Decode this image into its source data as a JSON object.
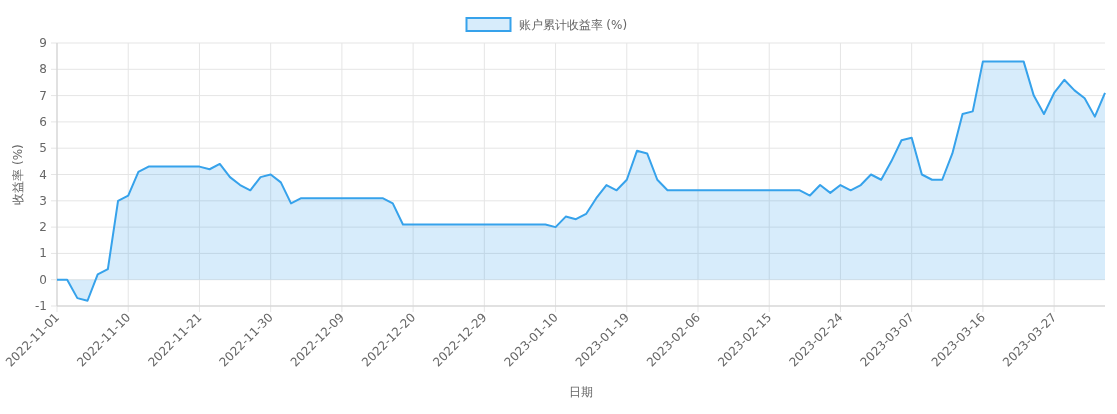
{
  "chart_data": {
    "type": "area",
    "xlabel": "日期",
    "ylabel": "收益率 (%)",
    "ylim": [
      -1,
      9
    ],
    "yticks": [
      -1,
      0,
      1,
      2,
      3,
      4,
      5,
      6,
      7,
      8,
      9
    ],
    "grid": true,
    "legend": "top",
    "marker": "none",
    "categories": [
      "2022-11-01",
      null,
      null,
      null,
      null,
      null,
      null,
      "2022-11-10",
      null,
      null,
      null,
      null,
      null,
      null,
      "2022-11-21",
      null,
      null,
      null,
      null,
      null,
      null,
      "2022-11-30",
      null,
      null,
      null,
      null,
      null,
      null,
      "2022-12-09",
      null,
      null,
      null,
      null,
      null,
      null,
      "2022-12-20",
      null,
      null,
      null,
      null,
      null,
      null,
      "2022-12-29",
      null,
      null,
      null,
      null,
      null,
      null,
      "2023-01-10",
      null,
      null,
      null,
      null,
      null,
      null,
      "2023-01-19",
      null,
      null,
      null,
      null,
      null,
      null,
      "2023-02-06",
      null,
      null,
      null,
      null,
      null,
      null,
      "2023-02-15",
      null,
      null,
      null,
      null,
      null,
      null,
      "2023-02-24",
      null,
      null,
      null,
      null,
      null,
      null,
      "2023-03-07",
      null,
      null,
      null,
      null,
      null,
      null,
      "2023-03-16",
      null,
      null,
      null,
      null,
      null,
      null,
      "2023-03-27",
      null,
      null,
      null,
      null,
      null
    ],
    "series": [
      {
        "name": "账户累计收益率 (%)",
        "color": "#36a2eb",
        "values": [
          0,
          0,
          -0.7,
          -0.8,
          0.2,
          0.4,
          3.0,
          3.2,
          4.1,
          4.3,
          4.3,
          4.3,
          4.3,
          4.3,
          4.3,
          4.2,
          4.4,
          3.9,
          3.6,
          3.4,
          3.9,
          4.0,
          3.7,
          2.9,
          3.1,
          3.1,
          3.1,
          3.1,
          3.1,
          3.1,
          3.1,
          3.1,
          3.1,
          2.9,
          2.1,
          2.1,
          2.1,
          2.1,
          2.1,
          2.1,
          2.1,
          2.1,
          2.1,
          2.1,
          2.1,
          2.1,
          2.1,
          2.1,
          2.1,
          2.0,
          2.4,
          2.3,
          2.5,
          3.1,
          3.6,
          3.4,
          3.8,
          4.9,
          4.8,
          3.8,
          3.4,
          3.4,
          3.4,
          3.4,
          3.4,
          3.4,
          3.4,
          3.4,
          3.4,
          3.4,
          3.4,
          3.4,
          3.4,
          3.4,
          3.2,
          3.6,
          3.3,
          3.6,
          3.4,
          3.6,
          4.0,
          3.8,
          4.5,
          5.3,
          5.4,
          4.0,
          3.8,
          3.8,
          4.8,
          6.3,
          6.4,
          8.3,
          8.3,
          8.3,
          8.3,
          8.3,
          7.0,
          6.3,
          7.1,
          7.6,
          7.2,
          6.9,
          6.2,
          7.1
        ]
      }
    ]
  }
}
